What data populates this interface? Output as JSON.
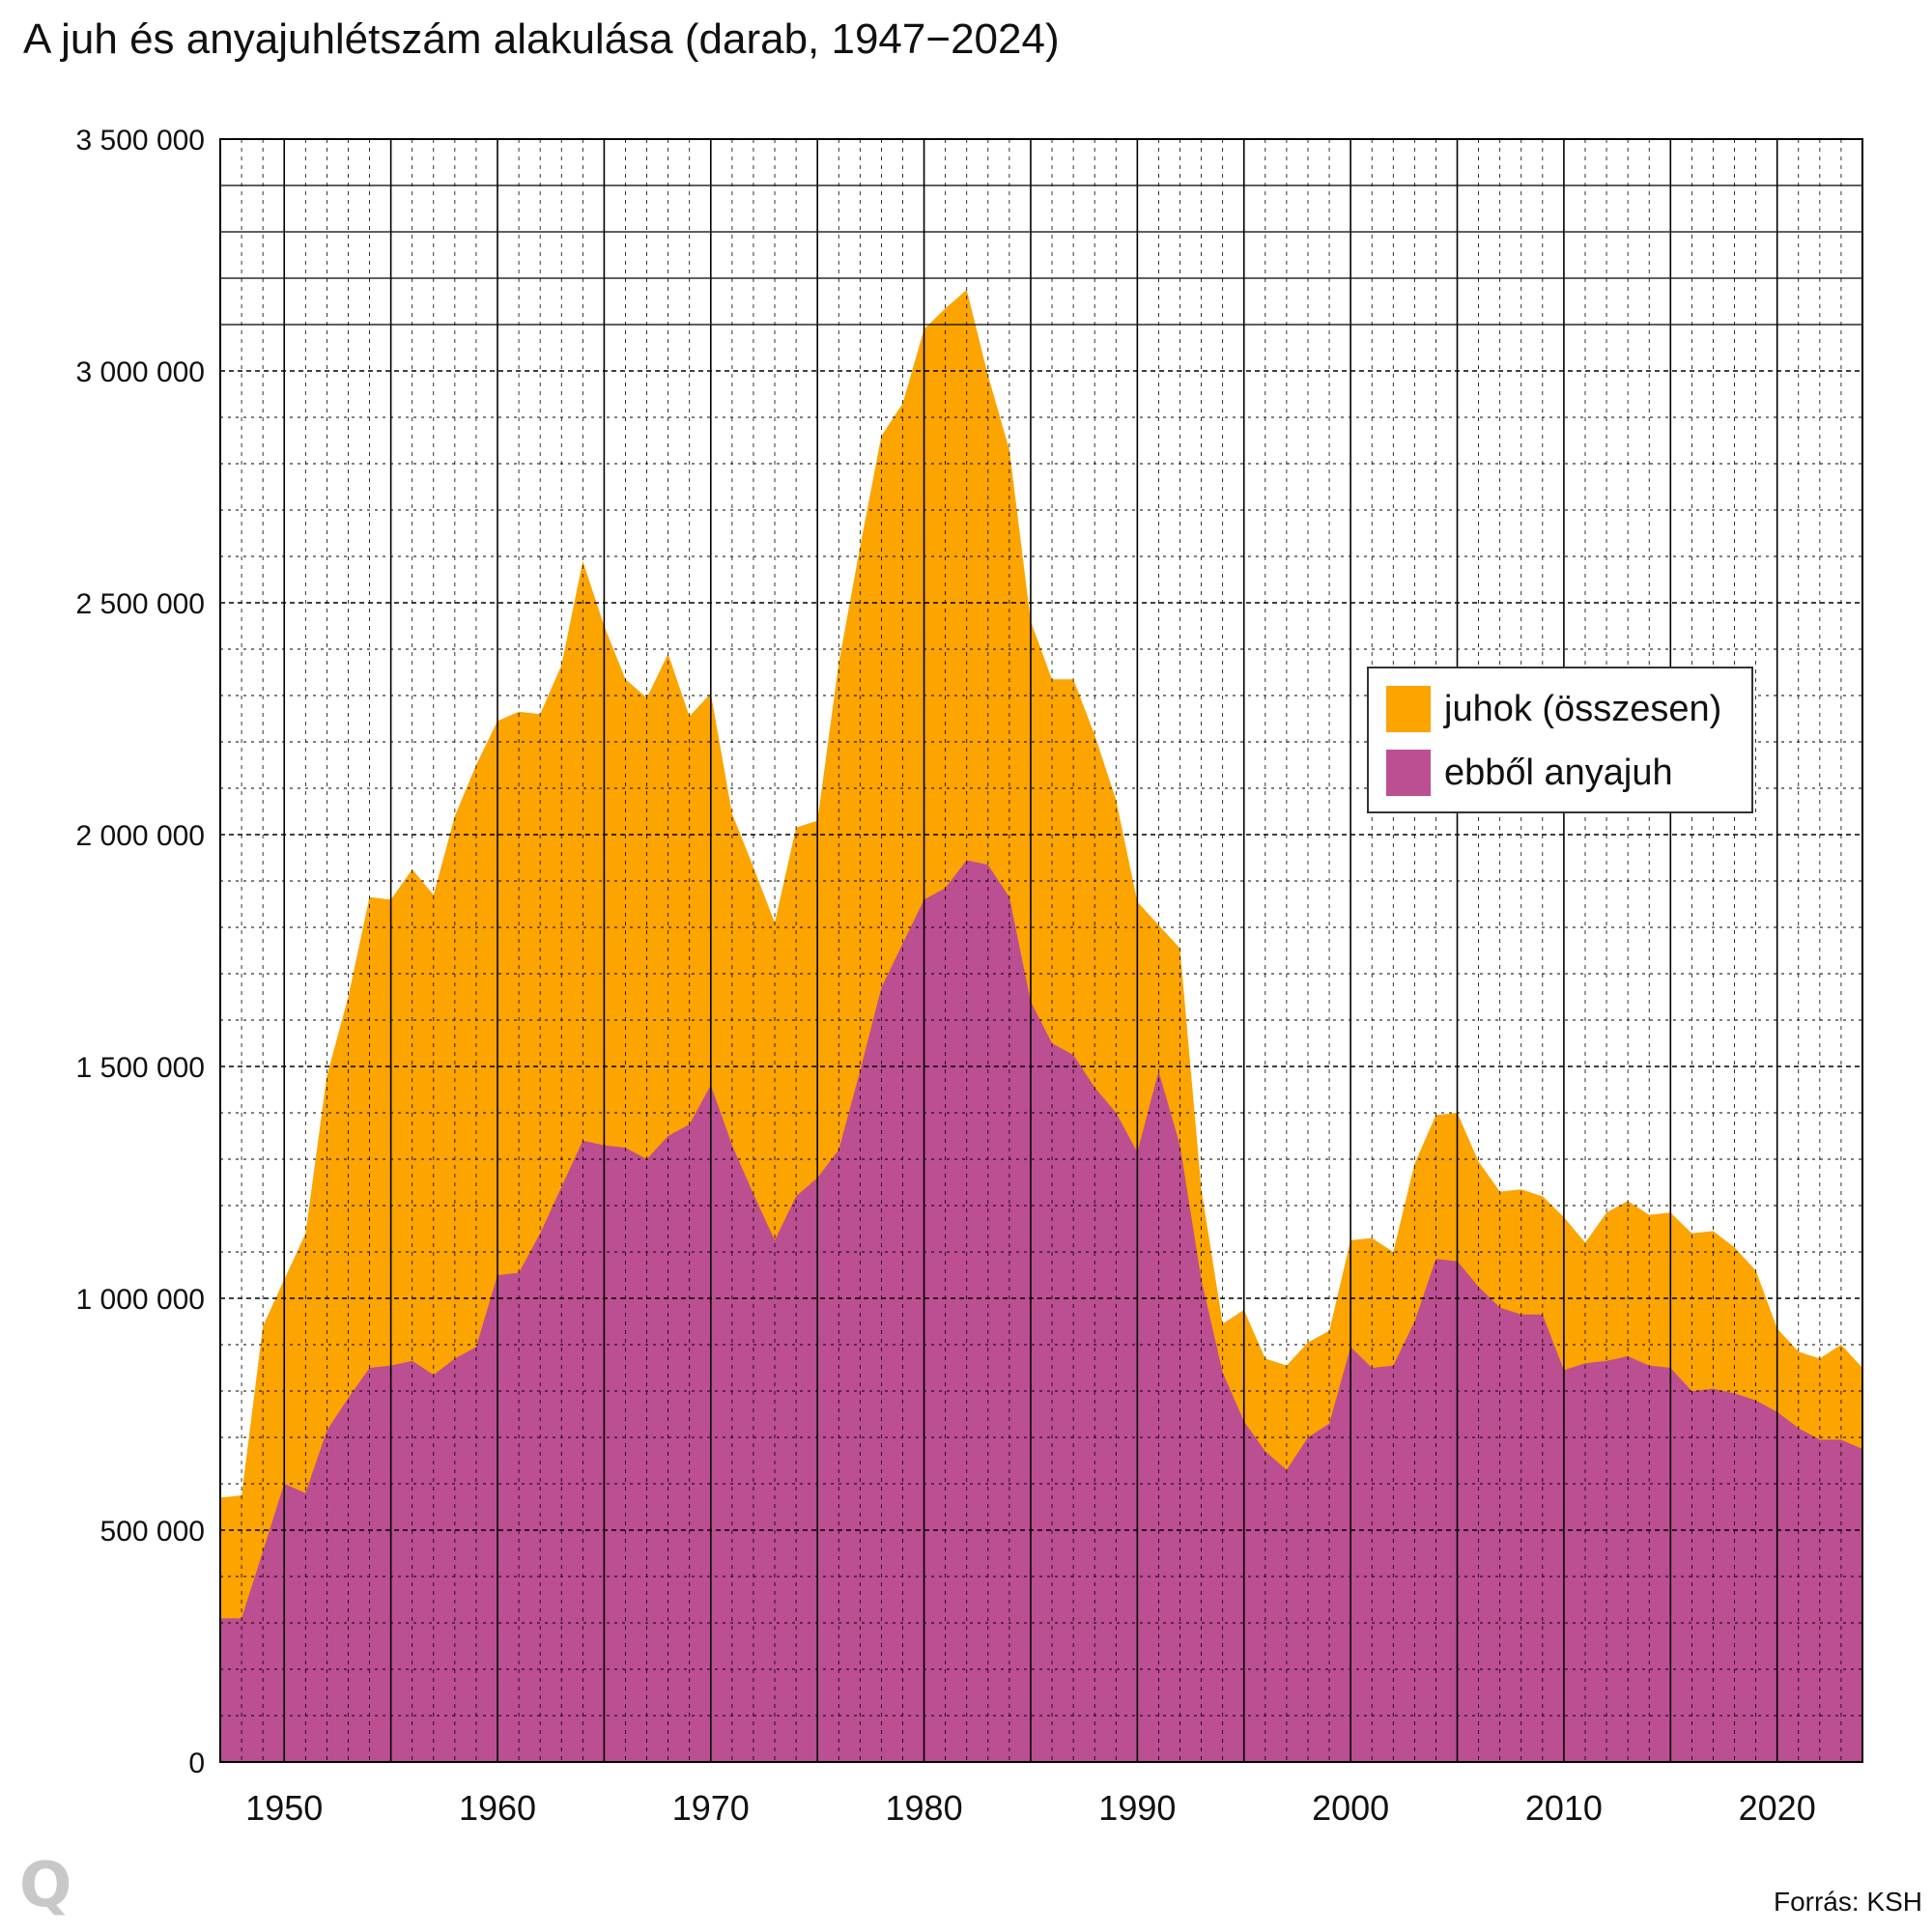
{
  "title": "A juh és anyajuhlétszám alakulása (darab, 1947−2024)",
  "source": "Forrás: KSH",
  "logo": "Q",
  "colors": {
    "total": "#fca400",
    "ewes": "#bc4e92",
    "grid": "#000000"
  },
  "chart_data": {
    "type": "area",
    "title": "A juh és anyajuhlétszám alakulása (darab, 1947−2024)",
    "xlabel": "",
    "ylabel": "",
    "xlim": [
      1947,
      2024
    ],
    "ylim": [
      0,
      3500000
    ],
    "y_ticks": [
      0,
      500000,
      1000000,
      1500000,
      2000000,
      2500000,
      3000000,
      3500000
    ],
    "y_tick_labels": [
      "0",
      "500 000",
      "1 000 000",
      "1 500 000",
      "2 000 000",
      "2 500 000",
      "3 000 000",
      "3 500 000"
    ],
    "x_ticks": [
      1950,
      1960,
      1970,
      1980,
      1990,
      2000,
      2010,
      2020
    ],
    "x_tick_labels": [
      "1950",
      "1960",
      "1970",
      "1980",
      "1990",
      "2000",
      "2010",
      "2020"
    ],
    "grid": true,
    "legend_position": "right",
    "x": [
      1947,
      1948,
      1949,
      1950,
      1951,
      1952,
      1953,
      1954,
      1955,
      1956,
      1957,
      1958,
      1959,
      1960,
      1961,
      1962,
      1963,
      1964,
      1965,
      1966,
      1967,
      1968,
      1969,
      1970,
      1971,
      1972,
      1973,
      1974,
      1975,
      1976,
      1977,
      1978,
      1979,
      1980,
      1981,
      1982,
      1983,
      1984,
      1985,
      1986,
      1987,
      1988,
      1989,
      1990,
      1991,
      1992,
      1993,
      1994,
      1995,
      1996,
      1997,
      1998,
      1999,
      2000,
      2001,
      2002,
      2003,
      2004,
      2005,
      2006,
      2007,
      2008,
      2009,
      2010,
      2011,
      2012,
      2013,
      2014,
      2015,
      2016,
      2017,
      2018,
      2019,
      2020,
      2021,
      2022,
      2023,
      2024
    ],
    "series": [
      {
        "name": "juhok (összesen)",
        "values": [
          570000,
          575000,
          940000,
          1040000,
          1140000,
          1480000,
          1650000,
          1865000,
          1860000,
          1925000,
          1870000,
          2040000,
          2150000,
          2245000,
          2265000,
          2260000,
          2365000,
          2590000,
          2450000,
          2335000,
          2295000,
          2390000,
          2255000,
          2305000,
          2045000,
          1930000,
          1810000,
          2015000,
          2030000,
          2370000,
          2620000,
          2860000,
          2930000,
          3090000,
          3135000,
          3175000,
          2990000,
          2830000,
          2460000,
          2335000,
          2335000,
          2215000,
          2075000,
          1855000,
          1805000,
          1755000,
          1235000,
          945000,
          975000,
          870000,
          855000,
          905000,
          930000,
          1125000,
          1130000,
          1100000,
          1290000,
          1395000,
          1400000,
          1295000,
          1230000,
          1235000,
          1220000,
          1175000,
          1120000,
          1185000,
          1210000,
          1180000,
          1185000,
          1140000,
          1145000,
          1110000,
          1060000,
          935000,
          885000,
          870000,
          900000,
          850000
        ]
      },
      {
        "name": "ebből anyajuh",
        "values": [
          310000,
          310000,
          455000,
          600000,
          580000,
          715000,
          785000,
          850000,
          855000,
          865000,
          835000,
          870000,
          895000,
          1050000,
          1055000,
          1140000,
          1240000,
          1340000,
          1330000,
          1325000,
          1300000,
          1350000,
          1375000,
          1460000,
          1330000,
          1225000,
          1125000,
          1220000,
          1260000,
          1320000,
          1490000,
          1670000,
          1765000,
          1860000,
          1885000,
          1945000,
          1935000,
          1865000,
          1640000,
          1550000,
          1525000,
          1455000,
          1400000,
          1315000,
          1490000,
          1330000,
          1040000,
          840000,
          735000,
          670000,
          630000,
          700000,
          730000,
          895000,
          850000,
          855000,
          950000,
          1085000,
          1080000,
          1025000,
          980000,
          965000,
          965000,
          845000,
          860000,
          865000,
          875000,
          855000,
          850000,
          800000,
          805000,
          795000,
          780000,
          755000,
          720000,
          695000,
          695000,
          675000
        ]
      }
    ]
  }
}
